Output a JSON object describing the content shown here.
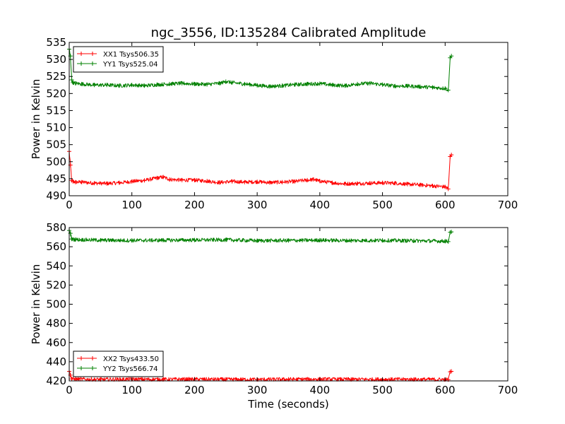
{
  "chart_data": [
    {
      "type": "line",
      "title": "ngc_3556, ID:135284 Calibrated Amplitude",
      "xlabel": "",
      "ylabel": "Power in Kelvin",
      "xlim": [
        0,
        700
      ],
      "ylim": [
        490,
        535
      ],
      "xticks": [
        0,
        100,
        200,
        300,
        400,
        500,
        600,
        700
      ],
      "yticks": [
        490,
        495,
        500,
        505,
        510,
        515,
        520,
        525,
        530,
        535
      ],
      "legend_position": "top-left",
      "series": [
        {
          "name": "XX1 Tsys506.35",
          "color": "#ff0000",
          "x": [
            0,
            2,
            4,
            6,
            10,
            20,
            40,
            60,
            80,
            100,
            120,
            140,
            150,
            160,
            180,
            200,
            220,
            240,
            260,
            280,
            300,
            320,
            340,
            360,
            380,
            390,
            400,
            420,
            440,
            460,
            480,
            500,
            520,
            540,
            560,
            580,
            600,
            605,
            608,
            610
          ],
          "values": [
            503,
            499,
            494.5,
            494.2,
            494,
            494,
            493.7,
            493.6,
            493.8,
            494.2,
            494.5,
            495.2,
            495.5,
            494.8,
            494.6,
            494.6,
            494.3,
            493.9,
            494.2,
            494,
            494.1,
            493.9,
            494,
            494.2,
            494.6,
            494.8,
            494.3,
            493.8,
            493.5,
            493.6,
            493.7,
            493.8,
            493.7,
            493.4,
            493.2,
            492.9,
            492.6,
            492,
            501.5,
            502
          ]
        },
        {
          "name": "YY1 Tsys525.04",
          "color": "#008000",
          "x": [
            0,
            2,
            4,
            6,
            10,
            20,
            40,
            60,
            80,
            100,
            120,
            140,
            160,
            180,
            200,
            220,
            240,
            250,
            260,
            280,
            300,
            320,
            340,
            360,
            380,
            400,
            420,
            440,
            460,
            480,
            500,
            520,
            540,
            560,
            580,
            600,
            605,
            608,
            610
          ],
          "values": [
            533,
            531,
            524,
            523.2,
            523,
            522.8,
            522.5,
            522.5,
            522.3,
            522.5,
            522.3,
            522.6,
            522.8,
            523,
            522.8,
            522.7,
            523,
            523.5,
            523.2,
            522.8,
            522.4,
            522.1,
            522.3,
            522.6,
            522.8,
            522.9,
            522.5,
            522.3,
            522.8,
            523,
            522.6,
            522.2,
            522.2,
            522.0,
            521.8,
            521.5,
            521,
            530.5,
            531
          ]
        }
      ]
    },
    {
      "type": "line",
      "title": "",
      "xlabel": "Time (seconds)",
      "ylabel": "Power in Kelvin",
      "xlim": [
        0,
        700
      ],
      "ylim": [
        420,
        580
      ],
      "xticks": [
        0,
        100,
        200,
        300,
        400,
        500,
        600,
        700
      ],
      "yticks": [
        420,
        440,
        460,
        480,
        500,
        520,
        540,
        560,
        580
      ],
      "legend_position": "bottom-left",
      "series": [
        {
          "name": "XX2 Tsys433.50",
          "color": "#ff0000",
          "x": [
            0,
            2,
            4,
            10,
            50,
            100,
            150,
            200,
            250,
            300,
            350,
            400,
            450,
            500,
            550,
            600,
            605,
            608,
            610
          ],
          "values": [
            430,
            426,
            422,
            421.8,
            421.5,
            421.7,
            421.6,
            421.8,
            421.6,
            421.5,
            421.7,
            421.8,
            421.6,
            421.7,
            421.6,
            421.5,
            421.3,
            429.5,
            430
          ]
        },
        {
          "name": "YY2 Tsys566.74",
          "color": "#008000",
          "x": [
            0,
            2,
            4,
            10,
            50,
            100,
            150,
            200,
            250,
            300,
            350,
            400,
            450,
            500,
            550,
            600,
            605,
            608,
            610
          ],
          "values": [
            577,
            574,
            568,
            567.5,
            566.8,
            566.5,
            566.8,
            567,
            567.2,
            566.3,
            566.5,
            566.8,
            566.4,
            566.6,
            566.2,
            565.8,
            565.3,
            575,
            575.5
          ]
        }
      ]
    }
  ]
}
